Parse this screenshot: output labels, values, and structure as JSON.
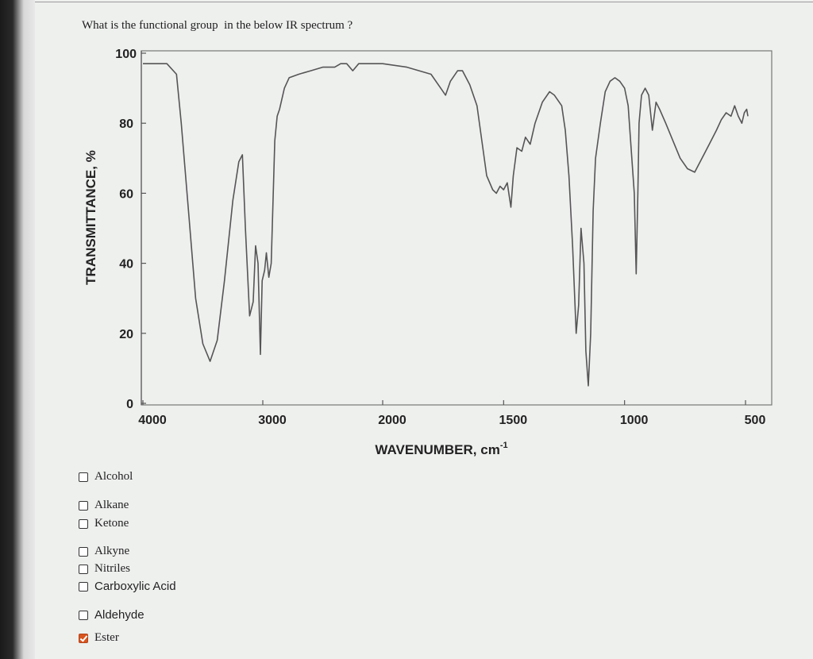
{
  "question": "What is the functional group  in the below IR spectrum ?",
  "chart_data": {
    "type": "line",
    "title": "",
    "xlabel": "WAVENUMBER, cm",
    "xlabel_superscript": "-1",
    "ylabel": "TRANSMITTANCE, %",
    "x_ticks": [
      "4000",
      "3000",
      "2000",
      "1500",
      "1000",
      "500"
    ],
    "y_ticks": [
      "0",
      "20",
      "40",
      "60",
      "80",
      "100"
    ],
    "ylim": [
      0,
      100
    ],
    "grid": false,
    "series": [
      {
        "points": [
          [
            4000,
            97
          ],
          [
            3800,
            97
          ],
          [
            3720,
            94
          ],
          [
            3680,
            80
          ],
          [
            3620,
            55
          ],
          [
            3560,
            30
          ],
          [
            3500,
            17
          ],
          [
            3440,
            12
          ],
          [
            3380,
            18
          ],
          [
            3320,
            35
          ],
          [
            3250,
            58
          ],
          [
            3200,
            69
          ],
          [
            3170,
            71
          ],
          [
            3145,
            50
          ],
          [
            3110,
            25
          ],
          [
            3080,
            29
          ],
          [
            3060,
            45
          ],
          [
            3040,
            40
          ],
          [
            3020,
            14
          ],
          [
            3005,
            35
          ],
          [
            2985,
            38
          ],
          [
            2970,
            43
          ],
          [
            2950,
            36
          ],
          [
            2930,
            40
          ],
          [
            2900,
            75
          ],
          [
            2880,
            82
          ],
          [
            2860,
            84
          ],
          [
            2820,
            90
          ],
          [
            2780,
            93
          ],
          [
            2700,
            94
          ],
          [
            2600,
            95
          ],
          [
            2500,
            96
          ],
          [
            2400,
            96
          ],
          [
            2350,
            97
          ],
          [
            2300,
            97
          ],
          [
            2250,
            95
          ],
          [
            2200,
            97
          ],
          [
            2100,
            97
          ],
          [
            2000,
            97
          ],
          [
            1900,
            96
          ],
          [
            1800,
            94
          ],
          [
            1760,
            90
          ],
          [
            1740,
            88
          ],
          [
            1720,
            92
          ],
          [
            1690,
            95
          ],
          [
            1670,
            95
          ],
          [
            1640,
            91
          ],
          [
            1610,
            85
          ],
          [
            1590,
            75
          ],
          [
            1570,
            65
          ],
          [
            1545,
            61
          ],
          [
            1530,
            60
          ],
          [
            1515,
            62
          ],
          [
            1500,
            61
          ],
          [
            1485,
            63
          ],
          [
            1470,
            56
          ],
          [
            1460,
            65
          ],
          [
            1445,
            73
          ],
          [
            1425,
            72
          ],
          [
            1410,
            76
          ],
          [
            1390,
            74
          ],
          [
            1370,
            80
          ],
          [
            1340,
            86
          ],
          [
            1310,
            89
          ],
          [
            1290,
            88
          ],
          [
            1260,
            85
          ],
          [
            1245,
            78
          ],
          [
            1230,
            65
          ],
          [
            1215,
            45
          ],
          [
            1200,
            20
          ],
          [
            1190,
            28
          ],
          [
            1180,
            50
          ],
          [
            1168,
            40
          ],
          [
            1160,
            15
          ],
          [
            1150,
            5
          ],
          [
            1140,
            20
          ],
          [
            1130,
            55
          ],
          [
            1120,
            70
          ],
          [
            1100,
            80
          ],
          [
            1080,
            89
          ],
          [
            1060,
            92
          ],
          [
            1040,
            93
          ],
          [
            1020,
            92
          ],
          [
            1000,
            90
          ],
          [
            985,
            85
          ],
          [
            970,
            70
          ],
          [
            960,
            60
          ],
          [
            952,
            37
          ],
          [
            945,
            60
          ],
          [
            940,
            80
          ],
          [
            930,
            88
          ],
          [
            915,
            90
          ],
          [
            900,
            88
          ],
          [
            885,
            78
          ],
          [
            870,
            86
          ],
          [
            855,
            84
          ],
          [
            830,
            80
          ],
          [
            800,
            75
          ],
          [
            770,
            70
          ],
          [
            740,
            67
          ],
          [
            710,
            66
          ],
          [
            680,
            70
          ],
          [
            650,
            74
          ],
          [
            620,
            78
          ],
          [
            600,
            81
          ],
          [
            580,
            83
          ],
          [
            560,
            82
          ],
          [
            545,
            85
          ],
          [
            530,
            82
          ],
          [
            515,
            80
          ],
          [
            505,
            83
          ],
          [
            495,
            84
          ],
          [
            490,
            82
          ]
        ]
      }
    ]
  },
  "options": [
    {
      "label": "Alcohol",
      "checked": false
    },
    {
      "label": "Alkane",
      "checked": false
    },
    {
      "label": "Ketone",
      "checked": false
    },
    {
      "label": "Alkyne",
      "checked": false
    },
    {
      "label": "Nitriles",
      "checked": false
    },
    {
      "label": "Carboxylic Acid",
      "checked": false
    },
    {
      "label": "Aldehyde",
      "checked": false
    },
    {
      "label": "Ester",
      "checked": true
    }
  ],
  "colors": {
    "checked_box": "#d9541e",
    "plot_line": "#555555",
    "plot_frame": "#777777"
  }
}
